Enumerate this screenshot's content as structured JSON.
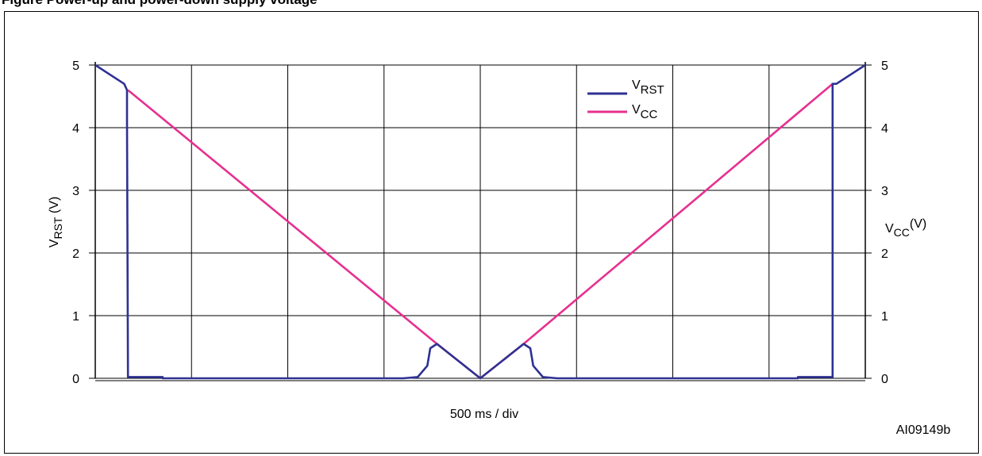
{
  "figure": {
    "title_partial": "Figure      Power-up and power-down supply voltage",
    "ref_code": "AI09149b"
  },
  "colors": {
    "vrst": "#2e3192",
    "vcc": "#e6308f",
    "grid": "#000000"
  },
  "chart_data": {
    "type": "line",
    "xlabel": "500 ms / div",
    "x_divisions": 8,
    "ylim": [
      0,
      5
    ],
    "yticks": [
      0,
      1,
      2,
      3,
      4,
      5
    ],
    "grid": true,
    "legend_position": "top-right",
    "left_axis": {
      "label_main": "V",
      "label_sub": "RST",
      "label_unit": " (V)"
    },
    "right_axis": {
      "label_main": "V",
      "label_sub": "CC",
      "label_unit": "(V)"
    },
    "series": [
      {
        "name": "VRST",
        "name_main": "V",
        "name_sub": "RST",
        "points": [
          [
            0,
            5.0
          ],
          [
            0.3,
            4.7
          ],
          [
            0.33,
            4.6
          ],
          [
            0.33,
            4.1
          ],
          [
            0.34,
            0.02
          ],
          [
            0.7,
            0.02
          ],
          [
            0.7,
            0.0
          ],
          [
            3.2,
            0.0
          ],
          [
            3.35,
            0.02
          ],
          [
            3.45,
            0.2
          ],
          [
            3.48,
            0.48
          ],
          [
            3.55,
            0.55
          ],
          [
            4.0,
            0.0
          ],
          [
            4.45,
            0.55
          ],
          [
            4.52,
            0.48
          ],
          [
            4.55,
            0.2
          ],
          [
            4.65,
            0.02
          ],
          [
            4.8,
            0.0
          ],
          [
            7.3,
            0.0
          ],
          [
            7.3,
            0.02
          ],
          [
            7.66,
            0.02
          ],
          [
            7.66,
            4.7
          ],
          [
            7.7,
            4.7
          ],
          [
            8.0,
            5.0
          ]
        ]
      },
      {
        "name": "VCC",
        "name_main": "V",
        "name_sub": "CC",
        "points": [
          [
            0.34,
            4.6
          ],
          [
            3.55,
            0.55
          ],
          [
            4.0,
            0.0
          ],
          [
            4.45,
            0.55
          ],
          [
            7.66,
            4.7
          ]
        ]
      }
    ]
  }
}
